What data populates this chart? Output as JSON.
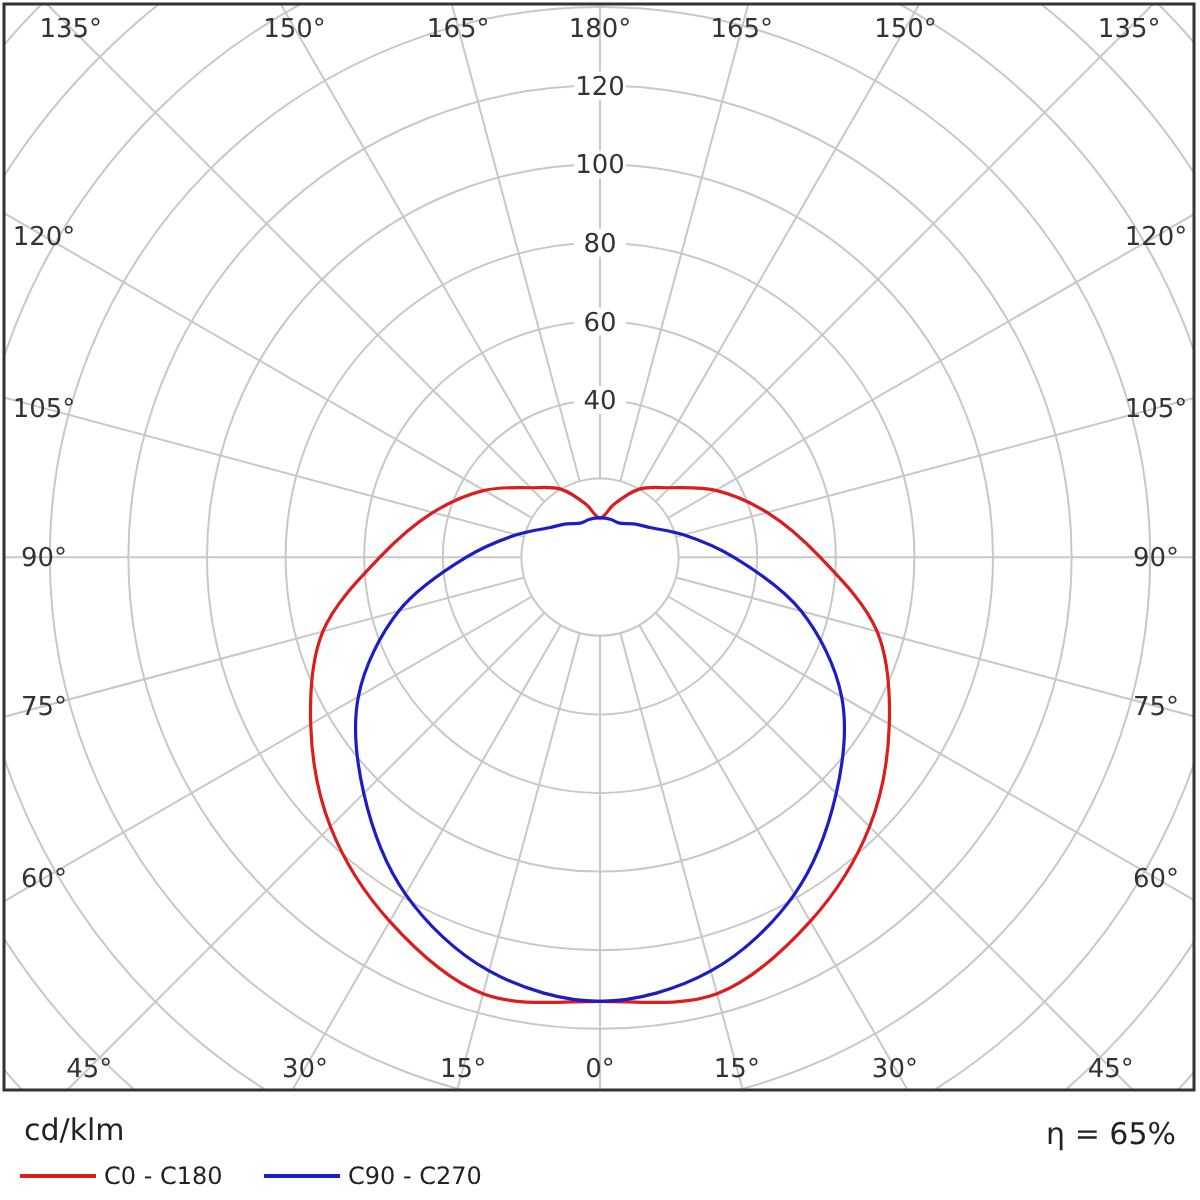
{
  "chart_data": {
    "type": "radar",
    "ylabel": "cd/klm",
    "categories": [
      "180°",
      "165°",
      "150°",
      "135°",
      "120°",
      "105°",
      "90°",
      "75°",
      "60°",
      "45°",
      "30°",
      "15°",
      "0°",
      "15°",
      "30°",
      "45°",
      "60°",
      "75°",
      "90°",
      "105°",
      "120°",
      "135°",
      "150°",
      "165°"
    ],
    "series": [
      {
        "name": "C0 - C180",
        "color": "#dd1c1c",
        "values": [
          10,
          14,
          20,
          25,
          34,
          44,
          56,
          73,
          85,
          97,
          107,
          115,
          113,
          115,
          107,
          97,
          85,
          73,
          56,
          44,
          34,
          25,
          20,
          14
        ]
      },
      {
        "name": "C90 - C270",
        "color": "#1c1cc8",
        "values": [
          10,
          10,
          10,
          12,
          15,
          22,
          34,
          53,
          71,
          85,
          99,
          109,
          113,
          109,
          99,
          85,
          71,
          53,
          34,
          22,
          15,
          12,
          10,
          10
        ]
      }
    ],
    "ylim": [
      0,
      200
    ],
    "yticks": [
      40,
      60,
      80,
      100,
      120
    ],
    "grid": true,
    "legend": "bottom left",
    "line_style": "solid",
    "annotations": [
      "η = 65%"
    ]
  }
}
